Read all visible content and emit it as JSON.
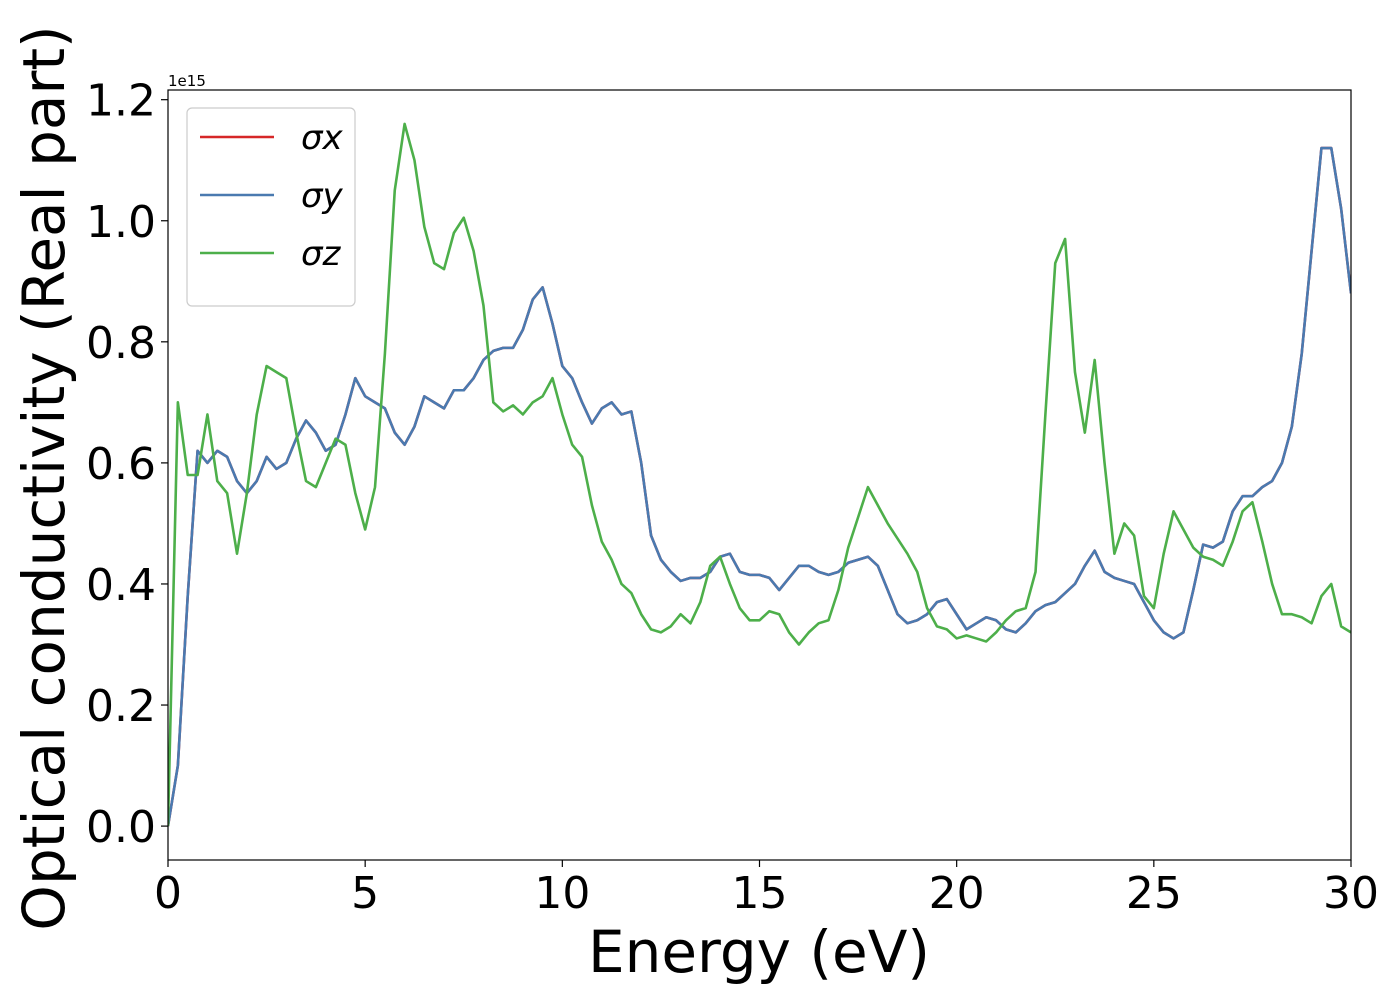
{
  "chart_data": {
    "type": "line",
    "xlabel": "Energy (eV)",
    "ylabel": "Optical conductivity (Real part)",
    "y_offset_label": "1e15",
    "xlim": [
      0,
      30
    ],
    "xticks": [
      0,
      5,
      10,
      15,
      20,
      25,
      30
    ],
    "ylim": [
      -0.056,
      1.216
    ],
    "yticks": [
      {
        "value": 0,
        "label": "0.0"
      },
      0.2,
      0.4,
      0.6,
      0.8,
      {
        "value": 1,
        "label": "1.0"
      },
      1.2
    ],
    "legend": "upper left",
    "x": [
      0,
      0.25,
      0.5,
      0.75,
      1,
      1.25,
      1.5,
      1.75,
      2,
      2.25,
      2.5,
      2.75,
      3,
      3.25,
      3.5,
      3.75,
      4,
      4.25,
      4.5,
      4.75,
      5,
      5.25,
      5.5,
      5.75,
      6,
      6.25,
      6.5,
      6.75,
      7,
      7.25,
      7.5,
      7.75,
      8,
      8.25,
      8.5,
      8.75,
      9,
      9.25,
      9.5,
      9.75,
      10,
      10.25,
      10.5,
      10.75,
      11,
      11.25,
      11.5,
      11.75,
      12,
      12.25,
      12.5,
      12.75,
      13,
      13.25,
      13.5,
      13.75,
      14,
      14.25,
      14.5,
      14.75,
      15,
      15.25,
      15.5,
      15.75,
      16,
      16.25,
      16.5,
      16.75,
      17,
      17.25,
      17.5,
      17.75,
      18,
      18.25,
      18.5,
      18.75,
      19,
      19.25,
      19.5,
      19.75,
      20,
      20.25,
      20.5,
      20.75,
      21,
      21.25,
      21.5,
      21.75,
      22,
      22.25,
      22.5,
      22.75,
      23,
      23.25,
      23.5,
      23.75,
      24,
      24.25,
      24.5,
      24.75,
      25,
      25.25,
      25.5,
      25.75,
      26,
      26.25,
      26.5,
      26.75,
      27,
      27.25,
      27.5,
      27.75,
      28,
      28.25,
      28.5,
      28.75,
      29,
      29.25,
      29.5,
      29.75,
      30
    ],
    "series": [
      {
        "name": "σx",
        "color": "#d62728",
        "values": [
          0,
          0.1,
          0.38,
          0.62,
          0.6,
          0.62,
          0.61,
          0.57,
          0.55,
          0.57,
          0.61,
          0.59,
          0.6,
          0.64,
          0.67,
          0.65,
          0.62,
          0.63,
          0.68,
          0.74,
          0.71,
          0.7,
          0.69,
          0.65,
          0.63,
          0.66,
          0.71,
          0.7,
          0.69,
          0.72,
          0.72,
          0.74,
          0.77,
          0.785,
          0.79,
          0.79,
          0.82,
          0.87,
          0.89,
          0.83,
          0.76,
          0.74,
          0.7,
          0.665,
          0.69,
          0.7,
          0.68,
          0.685,
          0.6,
          0.48,
          0.44,
          0.42,
          0.405,
          0.41,
          0.41,
          0.42,
          0.445,
          0.45,
          0.42,
          0.415,
          0.415,
          0.41,
          0.39,
          0.41,
          0.43,
          0.43,
          0.42,
          0.415,
          0.42,
          0.435,
          0.44,
          0.445,
          0.43,
          0.39,
          0.35,
          0.335,
          0.34,
          0.35,
          0.37,
          0.375,
          0.35,
          0.325,
          0.335,
          0.345,
          0.34,
          0.325,
          0.32,
          0.335,
          0.355,
          0.365,
          0.37,
          0.385,
          0.4,
          0.43,
          0.455,
          0.42,
          0.41,
          0.405,
          0.4,
          0.37,
          0.34,
          0.32,
          0.31,
          0.32,
          0.39,
          0.465,
          0.46,
          0.47,
          0.52,
          0.545,
          0.545,
          0.56,
          0.57,
          0.6,
          0.66,
          0.78,
          0.95,
          1.12,
          1.12,
          1.02,
          0.88
        ]
      },
      {
        "name": "σy",
        "color": "#4a7ab0",
        "values": [
          0,
          0.1,
          0.38,
          0.62,
          0.6,
          0.62,
          0.61,
          0.57,
          0.55,
          0.57,
          0.61,
          0.59,
          0.6,
          0.64,
          0.67,
          0.65,
          0.62,
          0.63,
          0.68,
          0.74,
          0.71,
          0.7,
          0.69,
          0.65,
          0.63,
          0.66,
          0.71,
          0.7,
          0.69,
          0.72,
          0.72,
          0.74,
          0.77,
          0.785,
          0.79,
          0.79,
          0.82,
          0.87,
          0.89,
          0.83,
          0.76,
          0.74,
          0.7,
          0.665,
          0.69,
          0.7,
          0.68,
          0.685,
          0.6,
          0.48,
          0.44,
          0.42,
          0.405,
          0.41,
          0.41,
          0.42,
          0.445,
          0.45,
          0.42,
          0.415,
          0.415,
          0.41,
          0.39,
          0.41,
          0.43,
          0.43,
          0.42,
          0.415,
          0.42,
          0.435,
          0.44,
          0.445,
          0.43,
          0.39,
          0.35,
          0.335,
          0.34,
          0.35,
          0.37,
          0.375,
          0.35,
          0.325,
          0.335,
          0.345,
          0.34,
          0.325,
          0.32,
          0.335,
          0.355,
          0.365,
          0.37,
          0.385,
          0.4,
          0.43,
          0.455,
          0.42,
          0.41,
          0.405,
          0.4,
          0.37,
          0.34,
          0.32,
          0.31,
          0.32,
          0.39,
          0.465,
          0.46,
          0.47,
          0.52,
          0.545,
          0.545,
          0.56,
          0.57,
          0.6,
          0.66,
          0.78,
          0.95,
          1.12,
          1.12,
          1.02,
          0.88
        ]
      },
      {
        "name": "σz",
        "color": "#4daf4a",
        "values": [
          0,
          0.7,
          0.58,
          0.58,
          0.68,
          0.57,
          0.55,
          0.45,
          0.55,
          0.68,
          0.76,
          0.75,
          0.74,
          0.65,
          0.57,
          0.56,
          0.6,
          0.64,
          0.63,
          0.55,
          0.49,
          0.56,
          0.78,
          1.05,
          1.16,
          1.1,
          0.99,
          0.93,
          0.92,
          0.98,
          1.005,
          0.95,
          0.86,
          0.7,
          0.685,
          0.695,
          0.68,
          0.7,
          0.71,
          0.74,
          0.68,
          0.63,
          0.61,
          0.53,
          0.47,
          0.44,
          0.4,
          0.385,
          0.35,
          0.325,
          0.32,
          0.33,
          0.35,
          0.335,
          0.37,
          0.43,
          0.445,
          0.4,
          0.36,
          0.34,
          0.34,
          0.355,
          0.35,
          0.32,
          0.3,
          0.32,
          0.335,
          0.34,
          0.39,
          0.46,
          0.51,
          0.56,
          0.53,
          0.5,
          0.475,
          0.45,
          0.42,
          0.36,
          0.33,
          0.325,
          0.31,
          0.315,
          0.31,
          0.305,
          0.32,
          0.34,
          0.355,
          0.36,
          0.42,
          0.68,
          0.93,
          0.97,
          0.75,
          0.65,
          0.77,
          0.6,
          0.45,
          0.5,
          0.48,
          0.38,
          0.36,
          0.45,
          0.52,
          0.49,
          0.46,
          0.445,
          0.44,
          0.43,
          0.47,
          0.52,
          0.535,
          0.47,
          0.4,
          0.35,
          0.35,
          0.345,
          0.335,
          0.38,
          0.4,
          0.33,
          0.32
        ]
      }
    ]
  }
}
